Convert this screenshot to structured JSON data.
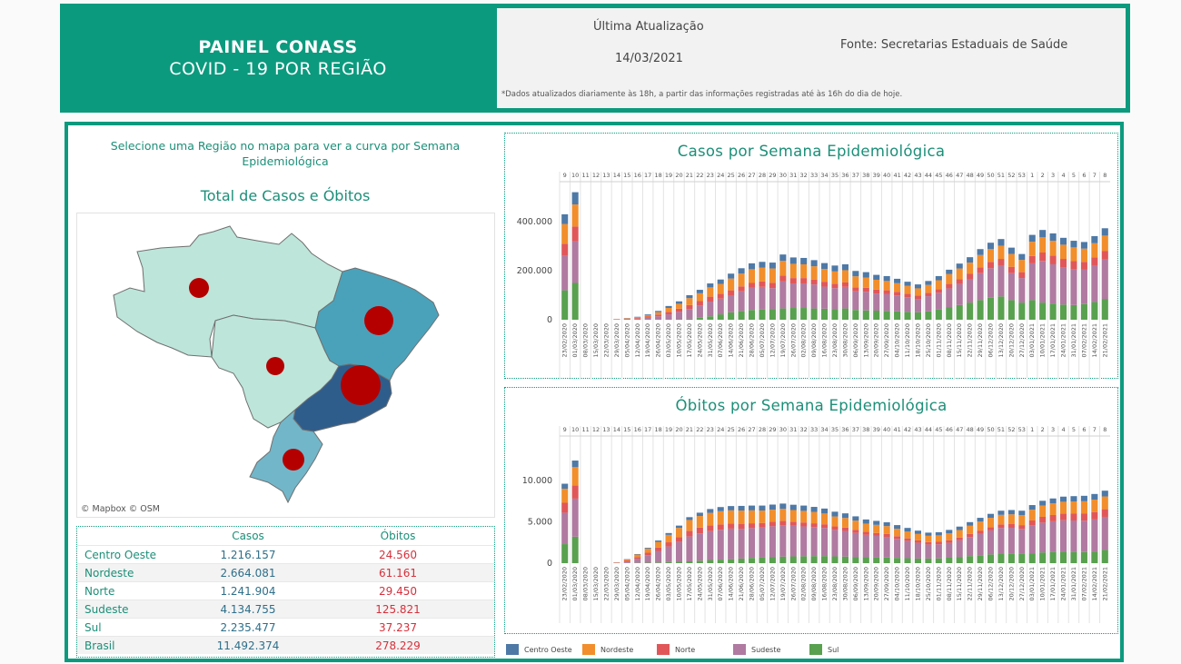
{
  "header": {
    "title_line1": "PAINEL CONASS",
    "title_line2": "COVID - 19 POR REGIÃO",
    "update_label": "Última Atualização",
    "update_date": "14/03/2021",
    "source": "Fonte: Secretarias Estaduais de Saúde",
    "note": "*Dados atualizados diariamente às 18h, a partir das informações registradas até às 16h do dia de hoje."
  },
  "left": {
    "instruction": "Selecione uma Região no mapa para ver a curva por Semana Epidemiológica",
    "total_title": "Total de Casos e Óbitos",
    "map_credit": "© Mapbox  © OSM"
  },
  "table": {
    "headers": [
      "",
      "Casos",
      "Óbitos"
    ],
    "rows": [
      {
        "region": "Centro Oeste",
        "cases": "1.216.157",
        "deaths": "24.560"
      },
      {
        "region": "Nordeste",
        "cases": "2.664.081",
        "deaths": "61.161"
      },
      {
        "region": "Norte",
        "cases": "1.241.904",
        "deaths": "29.450"
      },
      {
        "region": "Sudeste",
        "cases": "4.134.755",
        "deaths": "125.821"
      },
      {
        "region": "Sul",
        "cases": "2.235.477",
        "deaths": "37.237"
      },
      {
        "region": "Brasil",
        "cases": "11.492.374",
        "deaths": "278.229"
      }
    ]
  },
  "legend": [
    {
      "name": "Centro Oeste",
      "color": "#4e79a7"
    },
    {
      "name": "Nordeste",
      "color": "#f28e2b"
    },
    {
      "name": "Norte",
      "color": "#e15759"
    },
    {
      "name": "Sudeste",
      "color": "#b07aa1"
    },
    {
      "name": "Sul",
      "color": "#59a14f"
    }
  ],
  "chart_data": [
    {
      "type": "bar",
      "stacked": true,
      "title": "Casos por Semana Epidemiológica",
      "weeks": [
        "9",
        "10",
        "11",
        "12",
        "13",
        "14",
        "15",
        "16",
        "17",
        "18",
        "19",
        "20",
        "21",
        "22",
        "23",
        "24",
        "25",
        "26",
        "27",
        "28",
        "29",
        "30",
        "31",
        "32",
        "33",
        "34",
        "35",
        "36",
        "37",
        "38",
        "39",
        "40",
        "41",
        "42",
        "43",
        "44",
        "45",
        "46",
        "47",
        "48",
        "49",
        "50",
        "51",
        "52",
        "53",
        "1",
        "2",
        "3",
        "4",
        "5",
        "6",
        "7",
        "8"
      ],
      "dates": [
        "23/02/2020",
        "01/03/2020",
        "08/03/2020",
        "15/03/2020",
        "22/03/2020",
        "29/03/2020",
        "05/04/2020",
        "12/04/2020",
        "19/04/2020",
        "26/04/2020",
        "03/05/2020",
        "10/05/2020",
        "17/05/2020",
        "24/05/2020",
        "31/05/2020",
        "07/06/2020",
        "14/06/2020",
        "21/06/2020",
        "28/06/2020",
        "05/07/2020",
        "12/07/2020",
        "19/07/2020",
        "26/07/2020",
        "02/08/2020",
        "09/08/2020",
        "16/08/2020",
        "23/08/2020",
        "30/08/2020",
        "06/09/2020",
        "13/09/2020",
        "20/09/2020",
        "27/09/2020",
        "04/10/2020",
        "11/10/2020",
        "18/10/2020",
        "25/10/2020",
        "01/11/2020",
        "08/11/2020",
        "15/11/2020",
        "22/11/2020",
        "29/11/2020",
        "06/12/2020",
        "13/12/2020",
        "20/12/2020",
        "27/12/2020",
        "03/01/2021",
        "10/01/2021",
        "17/01/2021",
        "24/01/2021",
        "31/01/2021",
        "07/02/2021",
        "14/02/2021",
        "21/02/2021"
      ],
      "yticks": [
        0,
        200000,
        400000
      ],
      "ytick_labels": [
        "0",
        "200.000",
        "400.000"
      ],
      "ylim": [
        0,
        500000
      ],
      "series": [
        {
          "name": "Sul",
          "values": [
            120000,
            150000,
            0,
            0,
            0,
            0,
            0,
            0,
            0,
            0,
            0,
            2000,
            4000,
            8000,
            14000,
            22000,
            30000,
            36000,
            40000,
            42000,
            44000,
            46000,
            48000,
            48000,
            46000,
            45000,
            44000,
            46000,
            40000,
            38000,
            37000,
            36000,
            34000,
            32000,
            30000,
            34000,
            42000,
            50000,
            60000,
            70000,
            80000,
            90000,
            95000,
            80000,
            70000,
            80000,
            70000,
            66000,
            62000,
            60000,
            64000,
            72000,
            85000
          ]
        },
        {
          "name": "Sudeste",
          "values": [
            140000,
            170000,
            0,
            0,
            0,
            1000,
            2000,
            4000,
            8000,
            14000,
            22000,
            30000,
            40000,
            50000,
            60000,
            64000,
            70000,
            80000,
            90000,
            92000,
            85000,
            110000,
            100000,
            100000,
            98000,
            90000,
            85000,
            88000,
            76000,
            76000,
            70000,
            68000,
            65000,
            60000,
            55000,
            62000,
            68000,
            78000,
            85000,
            95000,
            110000,
            120000,
            125000,
            110000,
            100000,
            150000,
            170000,
            160000,
            150000,
            145000,
            140000,
            148000,
            160000
          ]
        },
        {
          "name": "Norte",
          "values": [
            50000,
            60000,
            0,
            0,
            0,
            1000,
            2000,
            3000,
            5000,
            7000,
            10000,
            13000,
            16000,
            18000,
            20000,
            20000,
            20000,
            20000,
            20000,
            22000,
            22000,
            24000,
            22000,
            22000,
            20000,
            20000,
            18000,
            18000,
            16000,
            16000,
            16000,
            16000,
            15000,
            14000,
            13000,
            14000,
            15000,
            18000,
            20000,
            22000,
            24000,
            26000,
            28000,
            26000,
            24000,
            30000,
            34000,
            36000,
            36000,
            34000,
            32000,
            34000,
            36000
          ]
        },
        {
          "name": "Nordeste",
          "values": [
            80000,
            90000,
            0,
            0,
            0,
            1000,
            2000,
            3000,
            6000,
            10000,
            16000,
            20000,
            28000,
            32000,
            38000,
            40000,
            48000,
            52000,
            56000,
            56000,
            58000,
            60000,
            58000,
            56000,
            54000,
            52000,
            50000,
            50000,
            45000,
            42000,
            40000,
            38000,
            35000,
            32000,
            30000,
            32000,
            36000,
            40000,
            44000,
            46000,
            50000,
            52000,
            54000,
            52000,
            50000,
            58000,
            62000,
            60000,
            58000,
            56000,
            54000,
            58000,
            62000
          ]
        },
        {
          "name": "Centro Oeste",
          "values": [
            40000,
            50000,
            0,
            0,
            0,
            500,
            1000,
            2000,
            3000,
            5000,
            8000,
            10000,
            12000,
            14000,
            16000,
            18000,
            20000,
            22000,
            24000,
            24000,
            24000,
            26000,
            26000,
            26000,
            25000,
            24000,
            24000,
            24000,
            22000,
            22000,
            20000,
            20000,
            18000,
            17000,
            16000,
            16000,
            17000,
            18000,
            20000,
            22000,
            24000,
            26000,
            27000,
            26000,
            24000,
            28000,
            30000,
            30000,
            28000,
            27000,
            27000,
            29000,
            30000
          ]
        }
      ]
    },
    {
      "type": "bar",
      "stacked": true,
      "title": "Óbitos por Semana Epidemiológica",
      "weeks": [
        "9",
        "10",
        "11",
        "12",
        "13",
        "14",
        "15",
        "16",
        "17",
        "18",
        "19",
        "20",
        "21",
        "22",
        "23",
        "24",
        "25",
        "26",
        "27",
        "28",
        "29",
        "30",
        "31",
        "32",
        "33",
        "34",
        "35",
        "36",
        "37",
        "38",
        "39",
        "40",
        "41",
        "42",
        "43",
        "44",
        "45",
        "46",
        "47",
        "48",
        "49",
        "50",
        "51",
        "52",
        "53",
        "1",
        "2",
        "3",
        "4",
        "5",
        "6",
        "7",
        "8"
      ],
      "dates": [
        "23/02/2020",
        "01/03/2020",
        "08/03/2020",
        "15/03/2020",
        "22/03/2020",
        "29/03/2020",
        "05/04/2020",
        "12/04/2020",
        "19/04/2020",
        "26/04/2020",
        "03/05/2020",
        "10/05/2020",
        "17/05/2020",
        "24/05/2020",
        "31/05/2020",
        "07/06/2020",
        "14/06/2020",
        "21/06/2020",
        "28/06/2020",
        "05/07/2020",
        "12/07/2020",
        "19/07/2020",
        "26/07/2020",
        "02/08/2020",
        "09/08/2020",
        "16/08/2020",
        "23/08/2020",
        "30/08/2020",
        "06/09/2020",
        "13/09/2020",
        "20/09/2020",
        "27/09/2020",
        "04/10/2020",
        "11/10/2020",
        "18/10/2020",
        "25/10/2020",
        "01/11/2020",
        "08/11/2020",
        "15/11/2020",
        "22/11/2020",
        "29/11/2020",
        "06/12/2020",
        "13/12/2020",
        "20/12/2020",
        "27/12/2020",
        "03/01/2021",
        "10/01/2021",
        "17/01/2021",
        "24/01/2021",
        "31/01/2021",
        "07/02/2021",
        "14/02/2021",
        "21/02/2021"
      ],
      "yticks": [
        0,
        5000,
        10000
      ],
      "ytick_labels": [
        "0",
        "5.000",
        "10.000"
      ],
      "ylim": [
        0,
        13500
      ],
      "series": [
        {
          "name": "Sul",
          "values": [
            2300,
            3200,
            0,
            0,
            0,
            0,
            20,
            40,
            60,
            80,
            120,
            160,
            220,
            300,
            380,
            430,
            480,
            560,
            640,
            700,
            760,
            800,
            820,
            840,
            860,
            860,
            820,
            800,
            760,
            720,
            700,
            680,
            640,
            600,
            560,
            560,
            580,
            660,
            760,
            860,
            960,
            1060,
            1160,
            1180,
            1140,
            1200,
            1300,
            1360,
            1380,
            1360,
            1340,
            1380,
            1600
          ]
        },
        {
          "name": "Sudeste",
          "values": [
            3800,
            4600,
            0,
            0,
            0,
            40,
            200,
            500,
            900,
            1400,
            1900,
            2400,
            3000,
            3300,
            3500,
            3600,
            3700,
            3600,
            3600,
            3600,
            3700,
            3800,
            3700,
            3600,
            3500,
            3400,
            3200,
            3100,
            2900,
            2700,
            2600,
            2500,
            2300,
            2100,
            1900,
            1700,
            1700,
            1800,
            2000,
            2300,
            2600,
            2900,
            3100,
            3100,
            3000,
            3400,
            3600,
            3700,
            3800,
            3800,
            3800,
            3900,
            4000
          ]
        },
        {
          "name": "Norte",
          "values": [
            1200,
            1600,
            0,
            0,
            0,
            20,
            100,
            200,
            300,
            400,
            500,
            600,
            700,
            700,
            700,
            650,
            600,
            600,
            580,
            560,
            540,
            520,
            500,
            480,
            460,
            440,
            420,
            400,
            380,
            360,
            350,
            340,
            320,
            300,
            290,
            290,
            300,
            320,
            340,
            360,
            380,
            400,
            420,
            440,
            460,
            560,
            700,
            760,
            820,
            860,
            880,
            900,
            920
          ]
        },
        {
          "name": "Nordeste",
          "values": [
            1700,
            2200,
            0,
            0,
            0,
            40,
            150,
            300,
            500,
            700,
            900,
            1100,
            1300,
            1400,
            1500,
            1600,
            1600,
            1600,
            1560,
            1500,
            1460,
            1440,
            1400,
            1400,
            1360,
            1300,
            1200,
            1160,
            1100,
            1000,
            980,
            960,
            900,
            840,
            780,
            760,
            780,
            840,
            900,
            1000,
            1080,
            1120,
            1160,
            1180,
            1200,
            1300,
            1360,
            1400,
            1420,
            1440,
            1460,
            1500,
            1540
          ]
        },
        {
          "name": "Centro Oeste",
          "values": [
            600,
            800,
            0,
            0,
            0,
            10,
            30,
            60,
            100,
            160,
            220,
            280,
            340,
            400,
            460,
            500,
            520,
            560,
            580,
            600,
            620,
            640,
            640,
            640,
            620,
            600,
            580,
            560,
            520,
            500,
            480,
            460,
            440,
            420,
            400,
            380,
            380,
            400,
            420,
            440,
            460,
            480,
            500,
            520,
            540,
            560,
            580,
            600,
            620,
            640,
            660,
            680,
            700
          ]
        }
      ]
    }
  ]
}
